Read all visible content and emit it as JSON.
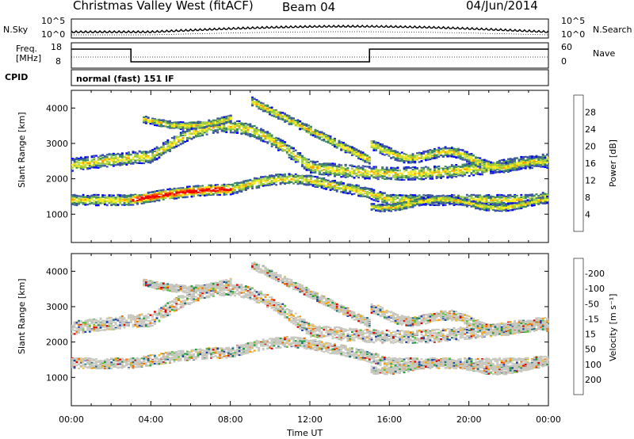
{
  "header": {
    "title": "Christmas Valley West (fitACF)",
    "beam": "Beam 04",
    "date": "04/Jun/2014"
  },
  "noise_panel": {
    "left_label": "N.Sky",
    "right_label": "N.Search",
    "left_ticks": [
      "10^5",
      "10^0"
    ],
    "right_ticks": [
      "10^5",
      "10^0"
    ]
  },
  "freq_panel": {
    "left_label_1": "Freq.",
    "left_label_2": "[MHz]",
    "right_label": "Nave",
    "left_ticks": [
      "18",
      "8"
    ],
    "right_ticks": [
      "60",
      "0"
    ]
  },
  "cpid_panel": {
    "label": "CPID",
    "program": "normal (fast) 151 IF"
  },
  "chart_data": [
    {
      "type": "heatmap",
      "name": "power",
      "ylabel": "Slant Range [km]",
      "ylim": [
        200,
        4500
      ],
      "yticks": [
        1000,
        2000,
        3000,
        4000
      ],
      "xlim_hours": [
        0,
        24
      ],
      "colorbar": {
        "label": "Power [dB]",
        "ticks": [
          "4",
          "8",
          "12",
          "16",
          "20",
          "24",
          "28"
        ],
        "colors": [
          "#0000ff",
          "#3c50a6",
          "#3f8a60",
          "#a0d040",
          "#f8ec20",
          "#f8a000",
          "#f86000",
          "#f00000"
        ]
      }
    },
    {
      "type": "heatmap",
      "name": "velocity",
      "ylabel": "Slant Range [km]",
      "ylim": [
        200,
        4500
      ],
      "yticks": [
        1000,
        2000,
        3000,
        4000
      ],
      "xlim_hours": [
        0,
        24
      ],
      "colorbar": {
        "label": "Velocity [m s⁻¹]",
        "ticks": [
          "200",
          "100",
          "50",
          "15",
          "-15",
          "-50",
          "-100",
          "-200"
        ],
        "colors": [
          "#2040b0",
          "#207080",
          "#20a040",
          "#60c040",
          "#c8c8c0",
          "#f0c040",
          "#f8a000",
          "#f07000",
          "#e00000"
        ]
      }
    }
  ],
  "time_axis": {
    "label": "Time UT",
    "ticks": [
      "00:00",
      "04:00",
      "08:00",
      "12:00",
      "16:00",
      "20:00",
      "00:00"
    ]
  }
}
